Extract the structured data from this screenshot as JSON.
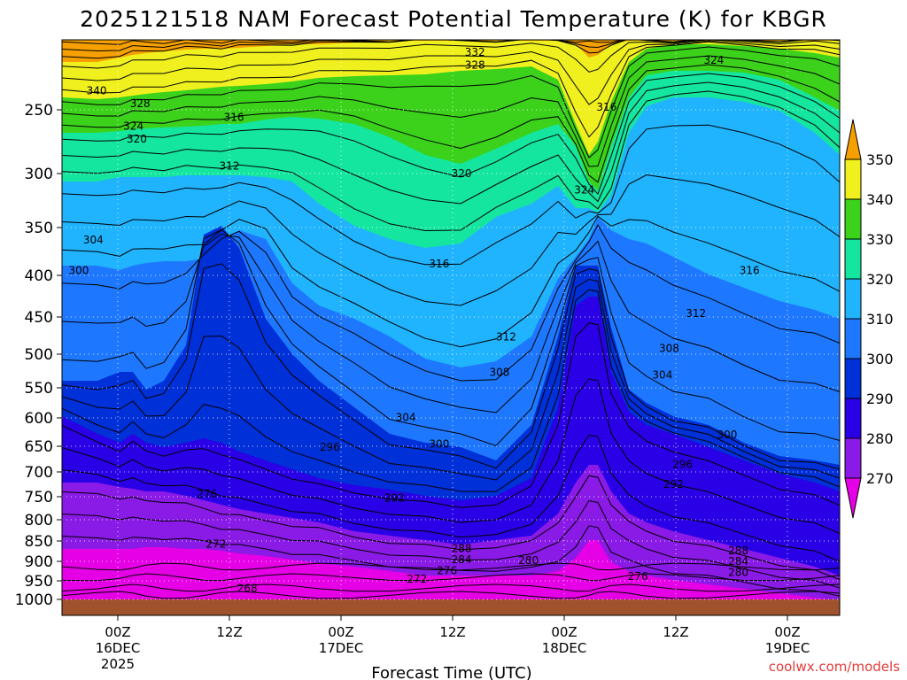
{
  "chart_data": {
    "type": "heatmap",
    "title": "2025121518 NAM Forecast Potential Temperature (K) for KBGR",
    "xlabel": "Forecast Time (UTC)",
    "ylabel": "",
    "credit": "coolwx.com/models",
    "x_range_hours": [
      -5,
      65
    ],
    "y_range_hpa": [
      1000,
      200
    ],
    "y_ticks": [
      "250",
      "300",
      "350",
      "400",
      "450",
      "500",
      "550",
      "600",
      "650",
      "700",
      "750",
      "800",
      "850",
      "900",
      "950",
      "1000"
    ],
    "x_ticks": [
      {
        "hour": 0,
        "lines": [
          "00Z",
          "16DEC",
          "2025"
        ]
      },
      {
        "hour": 10,
        "lines": [
          "12Z"
        ]
      },
      {
        "hour": 20,
        "lines": [
          "00Z",
          "17DEC"
        ]
      },
      {
        "hour": 30,
        "lines": [
          "12Z"
        ]
      },
      {
        "hour": 40,
        "lines": [
          "00Z",
          "18DEC"
        ]
      },
      {
        "hour": 50,
        "lines": [
          "12Z"
        ]
      },
      {
        "hour": 60,
        "lines": [
          "00Z",
          "19DEC"
        ]
      }
    ],
    "colorbar": {
      "levels": [
        270,
        280,
        290,
        300,
        310,
        320,
        330,
        340,
        350
      ],
      "labels": [
        "270",
        "280",
        "290",
        "300",
        "310",
        "320",
        "330",
        "340",
        "350"
      ],
      "colors": [
        "#e600e6",
        "#8a1ae6",
        "#2a00e6",
        "#0030d8",
        "#1e78ff",
        "#20b4ff",
        "#14e6a0",
        "#3cd21c",
        "#f0f01e",
        "#f5a000"
      ]
    },
    "contour_labels": [
      {
        "value": "340",
        "hour": -1.9,
        "p": 235
      },
      {
        "value": "328",
        "hour": 2.0,
        "p": 245
      },
      {
        "value": "324",
        "hour": 1.4,
        "p": 263
      },
      {
        "value": "320",
        "hour": 1.7,
        "p": 273
      },
      {
        "value": "316",
        "hour": 10.4,
        "p": 256
      },
      {
        "value": "312",
        "hour": 10.0,
        "p": 294
      },
      {
        "value": "304",
        "hour": -2.2,
        "p": 363
      },
      {
        "value": "300",
        "hour": -3.5,
        "p": 395
      },
      {
        "value": "332",
        "hour": 32.0,
        "p": 205
      },
      {
        "value": "328",
        "hour": 32.0,
        "p": 215
      },
      {
        "value": "320",
        "hour": 30.8,
        "p": 300
      },
      {
        "value": "324",
        "hour": 41.8,
        "p": 315
      },
      {
        "value": "316",
        "hour": 43.8,
        "p": 248
      },
      {
        "value": "324",
        "hour": 53.4,
        "p": 211
      },
      {
        "value": "316",
        "hour": 28.8,
        "p": 388
      },
      {
        "value": "316",
        "hour": 56.6,
        "p": 395
      },
      {
        "value": "312",
        "hour": 34.8,
        "p": 477
      },
      {
        "value": "312",
        "hour": 51.8,
        "p": 446
      },
      {
        "value": "308",
        "hour": 34.2,
        "p": 527
      },
      {
        "value": "308",
        "hour": 49.4,
        "p": 492
      },
      {
        "value": "304",
        "hour": 25.8,
        "p": 599
      },
      {
        "value": "304",
        "hour": 48.8,
        "p": 531
      },
      {
        "value": "300",
        "hour": 28.8,
        "p": 646
      },
      {
        "value": "300",
        "hour": 54.6,
        "p": 630
      },
      {
        "value": "296",
        "hour": 19.0,
        "p": 652
      },
      {
        "value": "296",
        "hour": 50.6,
        "p": 685
      },
      {
        "value": "292",
        "hour": 24.8,
        "p": 753
      },
      {
        "value": "292",
        "hour": 49.8,
        "p": 725
      },
      {
        "value": "276",
        "hour": 8.0,
        "p": 745
      },
      {
        "value": "272",
        "hour": 8.8,
        "p": 858
      },
      {
        "value": "288",
        "hour": 30.8,
        "p": 868
      },
      {
        "value": "284",
        "hour": 30.8,
        "p": 896
      },
      {
        "value": "280",
        "hour": 36.8,
        "p": 898
      },
      {
        "value": "276",
        "hour": 29.5,
        "p": 924
      },
      {
        "value": "272",
        "hour": 26.8,
        "p": 945
      },
      {
        "value": "268",
        "hour": 11.6,
        "p": 970
      },
      {
        "value": "276",
        "hour": 46.6,
        "p": 939
      },
      {
        "value": "288",
        "hour": 55.6,
        "p": 874
      },
      {
        "value": "284",
        "hour": 55.6,
        "p": 900
      },
      {
        "value": "280",
        "hour": 55.6,
        "p": 928
      }
    ]
  }
}
